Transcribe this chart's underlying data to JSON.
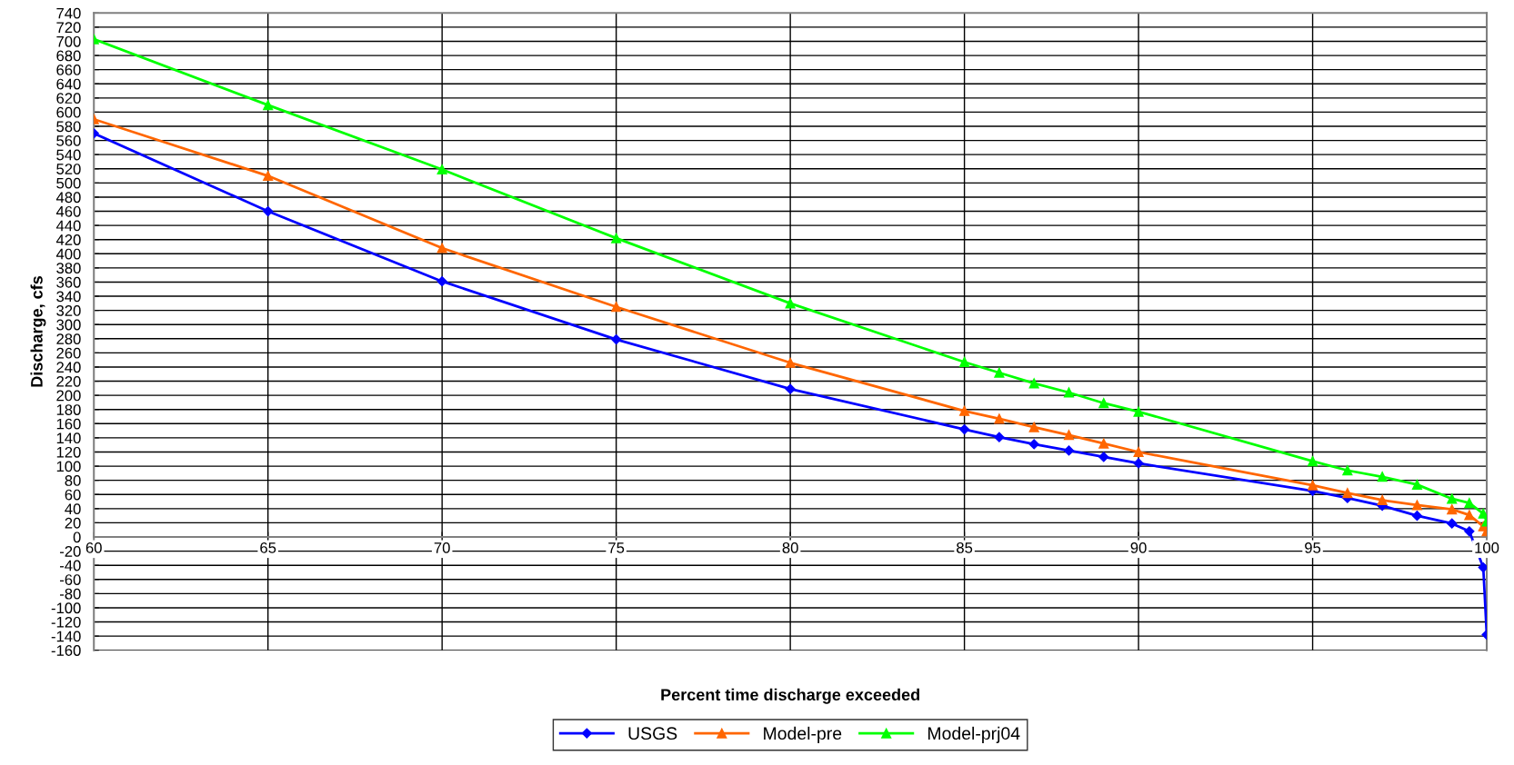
{
  "chart_data": {
    "type": "line",
    "xlabel": "Percent time discharge exceeded",
    "ylabel": "Discharge, cfs",
    "x": [
      60,
      65,
      70,
      75,
      80,
      85,
      86,
      87,
      88,
      89,
      90,
      95,
      96,
      97,
      98,
      99,
      99.5,
      99.9,
      100
    ],
    "series": [
      {
        "name": "USGS",
        "color": "#0000ff",
        "marker": "diamond",
        "values": [
          570,
          460,
          361,
          279,
          209,
          152,
          141,
          131,
          122,
          113,
          104,
          65,
          55,
          44,
          30,
          19,
          8,
          -43,
          -138
        ]
      },
      {
        "name": "Model-pre",
        "color": "#ff6600",
        "marker": "triangle",
        "values": [
          590,
          510,
          408,
          325,
          246,
          178,
          167,
          155,
          144,
          132,
          120,
          73,
          62,
          52,
          45,
          39,
          31,
          15,
          8
        ]
      },
      {
        "name": "Model-prj04",
        "color": "#00ff00",
        "marker": "triangle",
        "values": [
          703,
          610,
          519,
          422,
          330,
          247,
          232,
          217,
          204,
          189,
          177,
          107,
          94,
          85,
          74,
          54,
          48,
          33,
          22
        ]
      }
    ],
    "xlim": [
      60,
      100
    ],
    "xticks": [
      60,
      65,
      70,
      75,
      80,
      85,
      90,
      95,
      100
    ],
    "ylim": [
      -160,
      740
    ],
    "yticks": [
      -160,
      -140,
      -120,
      -100,
      -80,
      -60,
      -40,
      -20,
      0,
      20,
      40,
      60,
      80,
      100,
      120,
      140,
      160,
      180,
      200,
      220,
      240,
      260,
      280,
      300,
      320,
      340,
      360,
      380,
      400,
      420,
      440,
      460,
      480,
      500,
      520,
      540,
      560,
      580,
      600,
      620,
      640,
      660,
      680,
      700,
      720,
      740
    ],
    "grid": true,
    "legend": "bottom",
    "line_style": "solid"
  }
}
